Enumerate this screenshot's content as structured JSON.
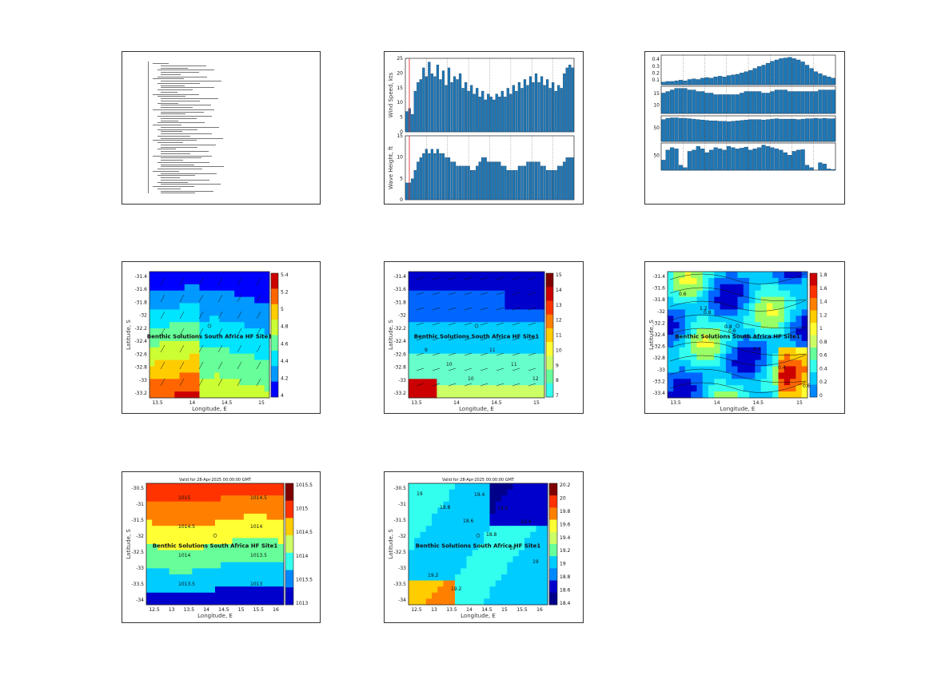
{
  "page": {
    "background": "#ffffff"
  },
  "chart_data": [
    {
      "id": "report-text",
      "type": "table",
      "note_lines": 60
    },
    {
      "id": "wind-wave-bars",
      "type": "bar",
      "subplots": [
        {
          "ylabel": "Wind Speed, kts",
          "ylim": [
            0,
            25
          ],
          "yticks": [
            "0",
            "5",
            "10",
            "15",
            "20",
            "25"
          ],
          "values": [
            7,
            8,
            6,
            14,
            17,
            18,
            22,
            19,
            24,
            20,
            19,
            23,
            18,
            21,
            16,
            22,
            17,
            19,
            18,
            20,
            15,
            17,
            14,
            16,
            13,
            15,
            12,
            14,
            11,
            13,
            12,
            11,
            13,
            12,
            14,
            12,
            15,
            13,
            16,
            14,
            17,
            15,
            18,
            16,
            19,
            17,
            20,
            17,
            19,
            16,
            18,
            15,
            17,
            14,
            16,
            15,
            20,
            22,
            23,
            22
          ]
        },
        {
          "ylabel": "Wave Height, ft",
          "ylim": [
            0,
            15
          ],
          "yticks": [
            "0",
            "5",
            "10",
            "15"
          ],
          "values": [
            4,
            4,
            5,
            7,
            9,
            10,
            11,
            12,
            11,
            12,
            11,
            12,
            11,
            11,
            10,
            10,
            9,
            9,
            8,
            8,
            8,
            8,
            8,
            7,
            7,
            8,
            9,
            10,
            10,
            9,
            9,
            9,
            9,
            9,
            8,
            8,
            7,
            7,
            7,
            7,
            8,
            8,
            8,
            9,
            9,
            9,
            9,
            9,
            8,
            8,
            7,
            7,
            7,
            7,
            8,
            8,
            9,
            10,
            10,
            10
          ]
        }
      ],
      "colors": {
        "bar": "#1f77b4",
        "marker": "#e41a1c"
      }
    },
    {
      "id": "multi-param-bars",
      "type": "bar",
      "subplots": [
        {
          "yticks": [
            "0.1",
            "0.2",
            "0.3",
            "0.4"
          ],
          "values": [
            0.04,
            0.05,
            0.05,
            0.06,
            0.07,
            0.06,
            0.08,
            0.09,
            0.08,
            0.1,
            0.11,
            0.1,
            0.12,
            0.13,
            0.12,
            0.14,
            0.15,
            0.16,
            0.18,
            0.2,
            0.22,
            0.25,
            0.28,
            0.3,
            0.33,
            0.36,
            0.38,
            0.4,
            0.41,
            0.42,
            0.4,
            0.38,
            0.35,
            0.3,
            0.25,
            0.2,
            0.17,
            0.14,
            0.12,
            0.1
          ]
        },
        {
          "yticks": [
            "10",
            "15"
          ],
          "values": [
            13,
            14,
            15,
            16,
            16,
            16,
            15,
            15,
            14,
            14,
            13,
            13,
            12,
            12,
            12,
            12,
            12,
            12,
            13,
            14,
            14,
            14,
            14,
            13,
            13,
            14,
            15,
            15,
            15,
            14,
            14,
            14,
            14,
            14,
            14,
            14,
            15,
            15,
            15,
            15
          ]
        },
        {
          "yticks": [
            "50"
          ],
          "values": [
            52,
            55,
            56,
            56,
            55,
            55,
            54,
            53,
            52,
            51,
            50,
            49,
            49,
            48,
            48,
            47,
            48,
            49,
            50,
            51,
            52,
            52,
            52,
            51,
            52,
            53,
            54,
            53,
            53,
            53,
            53,
            52,
            53,
            54,
            54,
            55,
            54,
            55,
            54,
            54
          ]
        },
        {
          "yticks": [
            "50"
          ],
          "values": [
            40,
            80,
            90,
            85,
            20,
            10,
            75,
            80,
            95,
            85,
            70,
            80,
            90,
            85,
            80,
            95,
            90,
            85,
            88,
            92,
            80,
            85,
            90,
            100,
            95,
            90,
            85,
            80,
            70,
            60,
            75,
            80,
            82,
            20,
            10,
            0,
            30,
            25,
            5,
            3
          ]
        }
      ],
      "colors": {
        "bar": "#1f77b4"
      }
    },
    {
      "id": "wave-height-map",
      "type": "heatmap",
      "site_label": "Benthic Solutions South Africa HF Site1",
      "xlabel": "Longitude, E",
      "ylabel": "Latitude, S",
      "xticks": [
        "13.5",
        "14",
        "14.5",
        "15"
      ],
      "yticks": [
        "-31.4",
        "-31.6",
        "-31.8",
        "-32",
        "-32.2",
        "-32.4",
        "-32.6",
        "-32.8",
        "-33",
        "-33.2"
      ],
      "colorbar_ticks": [
        "5.4",
        "5.2",
        "5",
        "4.8",
        "4.6",
        "4.4",
        "4.2",
        "4"
      ],
      "colorbar_colors": [
        "#cc0000",
        "#ff6600",
        "#ffcc00",
        "#ccff33",
        "#66ff99",
        "#00e5ff",
        "#0099ff",
        "#0000ff"
      ]
    },
    {
      "id": "wind-speed-map",
      "type": "heatmap",
      "site_label": "Benthic Solutions South Africa HF Site1",
      "xlabel": "Longitude, E",
      "ylabel": "Latitude, S",
      "xticks": [
        "13.5",
        "14",
        "14.5",
        "15"
      ],
      "yticks": [
        "-31.4",
        "-31.6",
        "-31.8",
        "-32",
        "-32.2",
        "-32.4",
        "-32.6",
        "-32.8",
        "-33",
        "-33.2"
      ],
      "colorbar_ticks": [
        "15",
        "14",
        "13",
        "12",
        "11",
        "10",
        "9",
        "8",
        "7"
      ],
      "contour_labels": [
        "9",
        "10",
        "10",
        "11",
        "11",
        "12"
      ]
    },
    {
      "id": "current-speed-map",
      "type": "heatmap",
      "site_label": "Benthic Solutions South Africa HF Site1",
      "xlabel": "Longitude, E",
      "ylabel": "Latitude, S",
      "xticks": [
        "13.5",
        "14",
        "14.5",
        "15"
      ],
      "yticks": [
        "-31.4",
        "-31.6",
        "-31.8",
        "-32",
        "-32.2",
        "-32.4",
        "-32.6",
        "-32.8",
        "-33",
        "-33.2",
        "-33.4"
      ],
      "colorbar_ticks": [
        "1.8",
        "1.6",
        "1.4",
        "1.2",
        "1",
        "0.8",
        "0.6",
        "0.4",
        "0.2",
        "0"
      ],
      "contour_labels": [
        "0.6",
        "0.8",
        "0.6",
        "0.4",
        "0.4",
        "0.6",
        "1.2",
        "0.8"
      ]
    },
    {
      "id": "pressure-map",
      "type": "heatmap",
      "title": "Valid for 28-Apr-2025 00:00:00 GMT",
      "site_label": "Benthic Solutions South Africa HF Site1",
      "xlabel": "Longitude, E",
      "ylabel": "Latitude, S",
      "xticks": [
        "12.5",
        "13",
        "13.5",
        "14",
        "14.5",
        "15",
        "15.5",
        "16"
      ],
      "yticks": [
        "-30.5",
        "-31",
        "-31.5",
        "-32",
        "-32.5",
        "-33",
        "-33.5",
        "-34"
      ],
      "colorbar_ticks": [
        "1015.5",
        "1015",
        "1014.5",
        "1014",
        "1013.5",
        "1013"
      ],
      "contour_labels": [
        "1015",
        "1014.5",
        "1014.5",
        "1014",
        "1014",
        "1013.5",
        "1013.5",
        "1013"
      ]
    },
    {
      "id": "air-temp-map",
      "type": "heatmap",
      "title": "Valid for 28-Apr-2025 00:00:00 GMT",
      "site_label": "Benthic Solutions South Africa HF Site1",
      "xlabel": "Longitude, E",
      "ylabel": "Latitude, S",
      "xticks": [
        "12.5",
        "13",
        "13.5",
        "14",
        "14.5",
        "15",
        "15.5",
        "16"
      ],
      "yticks": [
        "-30.5",
        "-31",
        "-31.5",
        "-32",
        "-32.5",
        "-33",
        "-33.5",
        "-34"
      ],
      "colorbar_ticks": [
        "20.2",
        "20",
        "19.8",
        "19.6",
        "19.4",
        "19.2",
        "19",
        "18.8",
        "18.6",
        "18.4"
      ],
      "contour_labels": [
        "19",
        "18.8",
        "18.6",
        "18.8",
        "19",
        "19",
        "19.2",
        "19.2",
        "19.4",
        "19.6",
        "19.4"
      ]
    }
  ]
}
